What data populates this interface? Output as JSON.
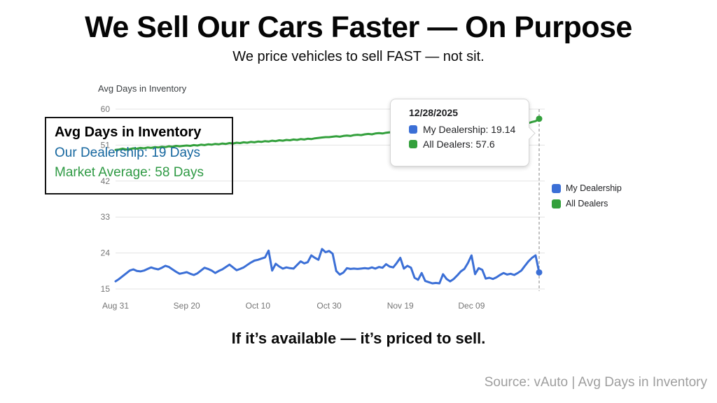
{
  "header": {
    "title": "We Sell Our Cars Faster — On Purpose",
    "subtitle": "We price vehicles to sell FAST — not sit."
  },
  "callout": {
    "title": "Avg Days in Inventory",
    "dealership_line": "Our Dealership: 19 Days",
    "market_line": "Market Average: 58 Days",
    "dealership_color": "#16679f",
    "market_color": "#2f9a44"
  },
  "tooltip": {
    "date": "12/28/2025",
    "rows": [
      {
        "label": "My Dealership: 19.14",
        "color": "#3b6fd6"
      },
      {
        "label": "All Dealers: 57.6",
        "color": "#33a03c"
      }
    ]
  },
  "legend": {
    "items": [
      {
        "label": "My Dealership",
        "color": "#3b6fd6"
      },
      {
        "label": "All Dealers",
        "color": "#33a03c"
      }
    ]
  },
  "footer": {
    "tagline": "If it’s available — it’s priced to sell.",
    "source": "Source: vAuto | Avg Days in Inventory"
  },
  "chart_data": {
    "type": "line",
    "title": "Avg Days in Inventory",
    "xlabel": "",
    "ylabel": "",
    "ylim": [
      15,
      60
    ],
    "y_ticks": [
      15,
      24,
      33,
      42,
      51,
      60
    ],
    "x_days": 119,
    "x_ticks": [
      {
        "day": 0,
        "label": "Aug 31"
      },
      {
        "day": 20,
        "label": "Sep 20"
      },
      {
        "day": 40,
        "label": "Oct 10"
      },
      {
        "day": 60,
        "label": "Oct 30"
      },
      {
        "day": 80,
        "label": "Nov 19"
      },
      {
        "day": 100,
        "label": "Dec 09"
      }
    ],
    "grid": true,
    "legend_position": "right",
    "crosshair_day": 119,
    "crosshair_date": "12/28/2025",
    "end_values": {
      "my_dealership": 19.14,
      "all_dealers": 57.6
    },
    "series": [
      {
        "name": "My Dealership",
        "color": "#3b6fd6",
        "values": [
          16.9,
          17.5,
          18.2,
          18.9,
          19.6,
          19.9,
          19.5,
          19.4,
          19.6,
          20.0,
          20.4,
          20.1,
          19.9,
          20.3,
          20.8,
          20.5,
          19.9,
          19.3,
          18.8,
          19.0,
          19.2,
          18.8,
          18.5,
          18.9,
          19.6,
          20.3,
          20.0,
          19.6,
          19.0,
          19.5,
          19.9,
          20.5,
          21.1,
          20.4,
          19.7,
          20.0,
          20.4,
          21.0,
          21.6,
          22.1,
          22.3,
          22.6,
          22.9,
          24.6,
          19.6,
          21.3,
          20.6,
          20.1,
          20.4,
          20.2,
          20.1,
          21.0,
          21.9,
          21.4,
          21.7,
          23.4,
          22.8,
          22.3,
          25.0,
          24.2,
          24.5,
          23.8,
          19.5,
          18.6,
          19.1,
          20.2,
          20.0,
          20.1,
          20.0,
          20.1,
          20.2,
          20.1,
          20.4,
          20.1,
          20.5,
          20.3,
          21.2,
          20.6,
          20.4,
          21.5,
          22.8,
          20.1,
          20.8,
          20.3,
          17.8,
          17.3,
          19.0,
          17.0,
          16.7,
          16.4,
          16.5,
          16.4,
          18.7,
          17.5,
          16.9,
          17.5,
          18.4,
          19.4,
          20.0,
          21.5,
          23.4,
          18.7,
          20.2,
          19.8,
          17.6,
          17.8,
          17.5,
          17.9,
          18.5,
          19.0,
          18.6,
          18.8,
          18.5,
          19.0,
          19.6,
          20.8,
          21.9,
          22.8,
          23.4,
          19.14
        ]
      },
      {
        "name": "All Dealers",
        "color": "#33a03c",
        "values": [
          49.8,
          49.9,
          50.1,
          49.9,
          50.0,
          50.2,
          50.1,
          50.3,
          50.2,
          50.4,
          50.3,
          50.5,
          50.4,
          50.6,
          50.5,
          50.7,
          50.6,
          50.8,
          50.7,
          50.8,
          50.9,
          50.8,
          51.0,
          50.9,
          51.1,
          51.0,
          51.2,
          51.1,
          51.3,
          51.2,
          51.4,
          51.3,
          51.5,
          51.4,
          51.6,
          51.5,
          51.7,
          51.6,
          51.8,
          51.7,
          51.9,
          51.8,
          52.0,
          51.9,
          52.1,
          52.0,
          52.2,
          52.1,
          52.3,
          52.2,
          52.4,
          52.3,
          52.5,
          52.4,
          52.6,
          52.5,
          52.7,
          52.8,
          52.9,
          53.0,
          53.0,
          53.1,
          53.2,
          53.1,
          53.3,
          53.4,
          53.3,
          53.5,
          53.6,
          53.5,
          53.7,
          53.8,
          53.7,
          53.9,
          54.0,
          53.9,
          54.1,
          54.2,
          54.1,
          54.3,
          54.2,
          54.4,
          54.5,
          54.4,
          54.6,
          54.7,
          54.6,
          54.8,
          54.9,
          54.8,
          55.0,
          54.9,
          55.1,
          55.2,
          55.1,
          55.3,
          55.4,
          55.3,
          55.5,
          55.6,
          55.5,
          55.7,
          55.8,
          55.7,
          55.9,
          56.0,
          55.9,
          56.1,
          56.2,
          56.1,
          56.3,
          56.2,
          56.4,
          56.5,
          56.4,
          56.6,
          56.5,
          56.8,
          57.0,
          57.6
        ]
      }
    ]
  }
}
